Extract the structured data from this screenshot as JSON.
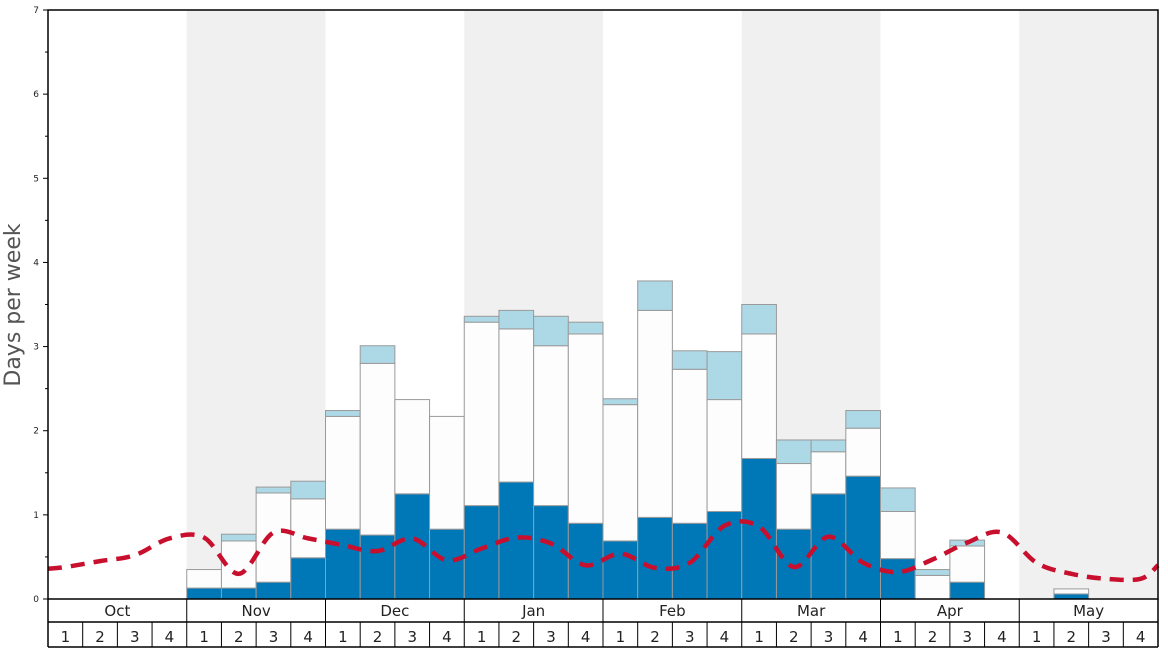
{
  "chart_data": {
    "type": "bar",
    "stacked": true,
    "ylabel": "Days per week",
    "ylim": [
      0,
      7
    ],
    "yticks": [
      "0",
      "1",
      "2",
      "3",
      "4",
      "5",
      "6",
      "7"
    ],
    "months": [
      "Oct",
      "Nov",
      "Dec",
      "Jan",
      "Feb",
      "Mar",
      "Apr",
      "May"
    ],
    "week_labels": [
      "1",
      "2",
      "3",
      "4"
    ],
    "shaded_months": [
      "Nov",
      "Jan",
      "Mar",
      "May"
    ],
    "colors": {
      "bottom": "#0077b6",
      "middle": "#fdfdfd",
      "top": "#add8e6",
      "line": "#c8102e",
      "shade": "#f0f0f0",
      "bar_stroke": "#9a9a9a"
    },
    "series": [
      {
        "key": "bottom",
        "values": [
          0,
          0,
          0,
          0,
          0.13,
          0.13,
          0.2,
          0.49,
          0.83,
          0.76,
          1.25,
          0.83,
          1.11,
          1.39,
          1.11,
          0.9,
          0.69,
          0.97,
          0.9,
          1.04,
          1.67,
          0.83,
          1.25,
          1.46,
          0.48,
          0,
          0.2,
          0,
          0,
          0.06,
          0,
          0
        ]
      },
      {
        "key": "middle",
        "values": [
          0,
          0,
          0,
          0,
          0.22,
          0.56,
          1.06,
          0.7,
          1.34,
          2.04,
          1.12,
          1.34,
          2.18,
          1.82,
          1.9,
          2.25,
          1.62,
          2.46,
          1.83,
          1.33,
          1.48,
          0.78,
          0.5,
          0.57,
          0.56,
          0.28,
          0.43,
          0,
          0,
          0.06,
          0,
          0
        ]
      },
      {
        "key": "top",
        "values": [
          0,
          0,
          0,
          0,
          0,
          0.08,
          0.07,
          0.21,
          0.07,
          0.21,
          0,
          0,
          0.07,
          0.22,
          0.35,
          0.14,
          0.07,
          0.35,
          0.22,
          0.57,
          0.35,
          0.28,
          0.14,
          0.21,
          0.28,
          0.07,
          0.07,
          0,
          0,
          0,
          0,
          0
        ]
      }
    ],
    "average_line": [
      0.38,
      0.45,
      0.52,
      0.72,
      0.73,
      0.3,
      0.79,
      0.72,
      0.64,
      0.57,
      0.72,
      0.46,
      0.6,
      0.73,
      0.66,
      0.4,
      0.54,
      0.37,
      0.43,
      0.87,
      0.86,
      0.38,
      0.74,
      0.43,
      0.32,
      0.47,
      0.67,
      0.79,
      0.43,
      0.3,
      0.24,
      0.24
    ]
  }
}
